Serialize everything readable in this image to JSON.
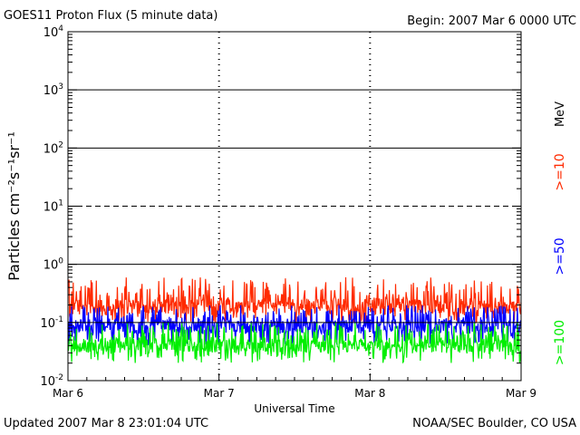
{
  "header": {
    "title": "GOES11 Proton Flux (5 minute data)",
    "begin": "Begin: 2007 Mar 6 0000 UTC"
  },
  "footer": {
    "updated": "Updated 2007 Mar  8 23:01:04 UTC",
    "source": "NOAA/SEC Boulder, CO USA"
  },
  "chart_data": {
    "type": "line",
    "title": "GOES11 Proton Flux (5 minute data)",
    "xlabel": "Universal Time",
    "ylabel": "Particles cm⁻²s⁻¹sr⁻¹",
    "yscale": "log",
    "ylim": [
      0.01,
      10000
    ],
    "y_ticks": [
      {
        "value": 0.01,
        "base": "10",
        "exp": "-2"
      },
      {
        "value": 0.1,
        "base": "10",
        "exp": "-1"
      },
      {
        "value": 1,
        "base": "10",
        "exp": "0"
      },
      {
        "value": 10,
        "base": "10",
        "exp": "1"
      },
      {
        "value": 100,
        "base": "10",
        "exp": "2"
      },
      {
        "value": 1000,
        "base": "10",
        "exp": "3"
      },
      {
        "value": 10000,
        "base": "10",
        "exp": "4"
      }
    ],
    "threshold_lines": [
      {
        "value": 10,
        "style": "dashed"
      },
      {
        "value": 0.1,
        "style": "solid"
      }
    ],
    "x_range_days": [
      0,
      3
    ],
    "x_ticks": [
      "Mar 6",
      "Mar 7",
      "Mar 8",
      "Mar 9"
    ],
    "energy_unit": "MeV",
    "series": [
      {
        "name": ">=10",
        "color": "#ff2a00",
        "baseline": 0.19,
        "min": 0.1,
        "max": 0.6,
        "approx_points": 864
      },
      {
        "name": ">=50",
        "color": "#0000ff",
        "baseline": 0.085,
        "min": 0.04,
        "max": 0.2,
        "approx_points": 864
      },
      {
        "name": ">=100",
        "color": "#00ee00",
        "baseline": 0.04,
        "min": 0.02,
        "max": 0.1,
        "approx_points": 864
      }
    ]
  }
}
